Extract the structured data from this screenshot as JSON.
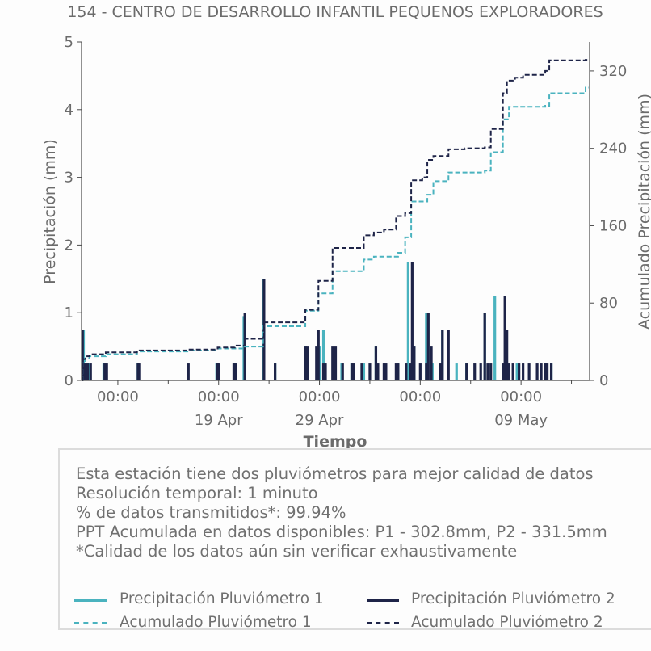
{
  "chart_data": {
    "type": "bar",
    "title": "154 - CENTRO DE DESARROLLO INFANTIL PEQUENOS EXPLORADORES",
    "xlabel": "Tiempo",
    "ylabel": "Precipitación (mm)",
    "y2label": "Acumulado Precipitación (mm)",
    "xlim": [
      0,
      25.2
    ],
    "ylim": [
      0,
      5
    ],
    "y2lim": [
      0,
      350
    ],
    "yticks": [
      "0",
      "1",
      "2",
      "3",
      "4",
      "5"
    ],
    "y2ticks": [
      "0",
      "80",
      "160",
      "240",
      "320"
    ],
    "xticks": [
      {
        "x": 1.8,
        "label": "00:00",
        "sub": ""
      },
      {
        "x": 6.8,
        "label": "00:00",
        "sub": "19 Apr"
      },
      {
        "x": 11.8,
        "label": "00:00",
        "sub": "29 Apr"
      },
      {
        "x": 16.8,
        "label": "00:00",
        "sub": ""
      },
      {
        "x": 21.8,
        "label": "00:00",
        "sub": "09 May"
      }
    ],
    "colors": {
      "p1": "#4ab3bf",
      "p2": "#1e2448",
      "grid": "none"
    },
    "series": [
      {
        "name": "Precipitación Pluviómetro 1",
        "kind": "bar",
        "x": [
          0.1,
          0.2,
          0.35,
          1.1,
          2.8,
          6.7,
          7.6,
          8.05,
          9.0,
          9.6,
          11.1,
          11.8,
          12.0,
          12.9,
          13.4,
          14.0,
          14.6,
          15.7,
          16.2,
          16.5,
          17.1,
          17.4,
          17.9,
          18.6,
          19.1,
          20.0,
          20.5,
          21.0,
          21.6,
          23.0,
          23.3
        ],
        "values": [
          0.75,
          0.25,
          0.25,
          0.25,
          0.25,
          0.25,
          0.25,
          0.95,
          1.5,
          0.25,
          0.5,
          0.5,
          0.75,
          0.25,
          0.25,
          0.25,
          0.5,
          0.25,
          1.75,
          0.5,
          1.0,
          0.25,
          0.75,
          0.25,
          0.25,
          1.0,
          1.25,
          0.25,
          0.25,
          0.25,
          0.25
        ],
        "color": "#4ab3bf"
      },
      {
        "name": "Precipitación Pluviómetro 2",
        "kind": "bar",
        "x": [
          0.05,
          0.15,
          0.3,
          0.45,
          1.15,
          1.25,
          2.8,
          2.85,
          5.3,
          6.75,
          6.8,
          7.55,
          7.65,
          8.1,
          9.05,
          9.6,
          11.1,
          11.2,
          11.65,
          11.75,
          12.0,
          12.1,
          12.45,
          12.6,
          12.95,
          13.4,
          13.5,
          13.9,
          14.3,
          14.6,
          14.7,
          15.0,
          15.1,
          15.6,
          15.7,
          16.1,
          16.3,
          16.4,
          16.5,
          16.8,
          17.1,
          17.2,
          17.35,
          17.8,
          17.9,
          18.2,
          19.1,
          19.5,
          19.8,
          20.0,
          20.15,
          20.3,
          20.9,
          21.0,
          21.1,
          21.2,
          21.4,
          21.7,
          21.9,
          22.2,
          22.6,
          22.8,
          23.0,
          23.1,
          23.3
        ],
        "values": [
          0.75,
          0.25,
          0.25,
          0.25,
          0.25,
          0.25,
          0.25,
          0.25,
          0.25,
          0.25,
          0.25,
          0.25,
          0.25,
          1.0,
          1.5,
          0.25,
          0.5,
          0.5,
          0.5,
          0.75,
          0.25,
          0.25,
          0.5,
          0.5,
          0.25,
          0.25,
          0.25,
          0.25,
          0.25,
          0.5,
          0.25,
          0.25,
          0.25,
          0.25,
          0.25,
          0.25,
          0.25,
          1.75,
          0.5,
          0.25,
          0.25,
          1.0,
          0.5,
          0.25,
          0.75,
          0.75,
          0.25,
          0.25,
          0.25,
          1.0,
          0.25,
          0.25,
          0.25,
          1.25,
          0.75,
          0.25,
          0.25,
          0.25,
          0.25,
          0.25,
          0.25,
          0.25,
          0.25,
          0.25,
          0.25
        ],
        "color": "#1e2448"
      },
      {
        "name": "Acumulado Pluviómetro 1",
        "kind": "step",
        "axis": "y2",
        "color": "#4ab3bf",
        "x": [
          0,
          0.05,
          0.2,
          0.4,
          1.2,
          2.75,
          5.3,
          6.75,
          8.05,
          9.0,
          11.1,
          11.75,
          12.45,
          14.0,
          14.5,
          15.7,
          16.05,
          16.35,
          17.15,
          17.45,
          18.2,
          20.0,
          20.3,
          20.9,
          21.2,
          23.0,
          23.2,
          25.0
        ],
        "values": [
          0,
          20,
          23,
          25,
          27,
          30,
          31,
          33,
          35,
          56,
          72,
          90,
          113,
          125,
          128,
          132,
          148,
          185,
          192,
          206,
          215,
          217,
          236,
          270,
          283,
          284,
          297,
          302.8
        ]
      },
      {
        "name": "Acumulado Pluviómetro 2",
        "kind": "step",
        "axis": "y2",
        "color": "#1e2448",
        "x": [
          0,
          0.05,
          0.2,
          0.4,
          1.2,
          2.75,
          5.3,
          6.75,
          7.6,
          8.1,
          9.05,
          11.1,
          11.75,
          12.45,
          14.0,
          14.5,
          15.0,
          15.6,
          16.05,
          16.35,
          16.9,
          17.15,
          17.45,
          18.2,
          19.0,
          20.0,
          20.3,
          20.9,
          21.1,
          21.5,
          21.9,
          23.0,
          23.2,
          25.0
        ],
        "values": [
          0,
          22,
          25,
          27,
          29,
          31,
          32,
          34,
          36,
          43,
          60,
          73,
          103,
          137,
          150,
          153,
          156,
          170,
          173,
          207,
          210,
          228,
          232,
          239,
          240,
          241,
          260,
          297,
          310,
          313,
          316,
          320,
          331,
          331.5
        ]
      }
    ]
  },
  "info": {
    "line1": "Esta estación tiene dos pluviómetros para mejor calidad de datos",
    "line2": "Resolución temporal: 1 minuto",
    "line3": "% de datos transmitidos*: 99.94%",
    "line4": "PPT Acumulada en datos disponibles: P1 - 302.8mm, P2 - 331.5mm",
    "line5": "*Calidad de los datos aún sin verificar exhaustivamente"
  },
  "legend": {
    "p1_precip": "Precipitación Pluviómetro 1",
    "p2_precip": "Precipitación Pluviómetro 2",
    "p1_acum": "Acumulado Pluviómetro 1",
    "p2_acum": "Acumulado Pluviómetro 2"
  }
}
